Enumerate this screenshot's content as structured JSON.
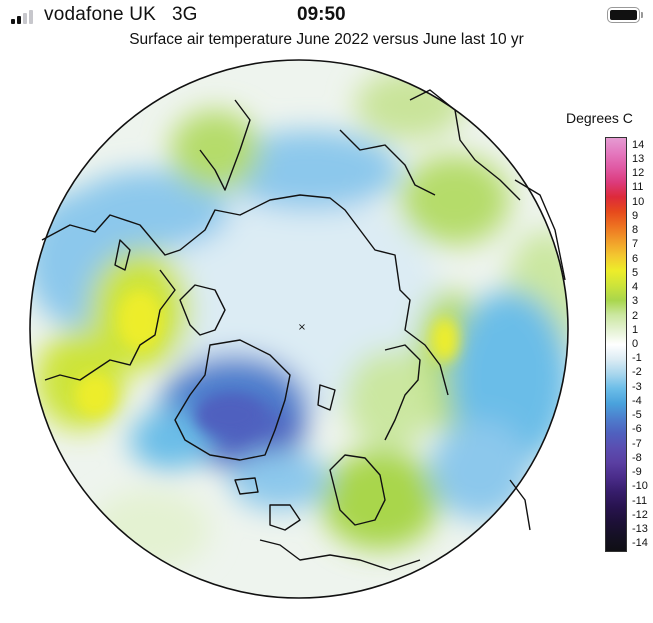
{
  "status_bar": {
    "carrier": "vodafone UK",
    "network": "3G",
    "time": "09:50",
    "signal_bars_active": 2,
    "signal_bars_total": 4
  },
  "map": {
    "title": "Surface air temperature June 2022 versus June last 10 yr",
    "projection": "north-polar-stereographic",
    "pole_marker": "×"
  },
  "legend": {
    "title": "Degrees C",
    "min": -14,
    "max": 14,
    "labels": [
      "14",
      "13",
      "12",
      "11",
      "10",
      "9",
      "8",
      "7",
      "6",
      "5",
      "4",
      "3",
      "2",
      "1",
      "0",
      "-1",
      "-2",
      "-3",
      "-4",
      "-5",
      "-6",
      "-7",
      "-8",
      "-9",
      "-10",
      "-11",
      "-12",
      "-13",
      "-14"
    ],
    "colors": [
      "#e59bd2",
      "#e479bf",
      "#e05aa4",
      "#dc3b7c",
      "#dd2a3a",
      "#e64a1c",
      "#ee7321",
      "#f19e2a",
      "#f3c830",
      "#eded2a",
      "#cde43a",
      "#a9d64c",
      "#cbe7a0",
      "#e4f2d2",
      "#ffffff",
      "#dcecf4",
      "#a8d6ed",
      "#6bbde8",
      "#4aa2dc",
      "#4d7fcd",
      "#4f61bf",
      "#5a4eb1",
      "#5a3fa2",
      "#4a2c8a",
      "#361d6b",
      "#28134f",
      "#1d1038",
      "#151024",
      "#0f0f14"
    ]
  }
}
